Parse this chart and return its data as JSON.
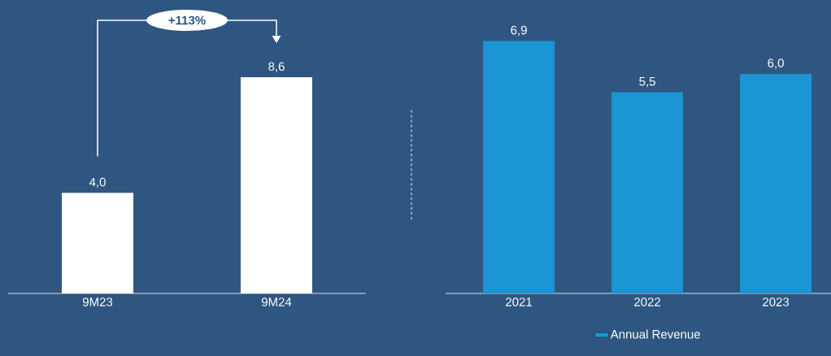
{
  "chart_data": [
    {
      "type": "bar",
      "categories": [
        "9M23",
        "9M24"
      ],
      "series": [
        {
          "color": "#ffffff",
          "values": [
            4.0,
            8.6
          ],
          "value_labels": [
            "4,0",
            "8,6"
          ]
        }
      ],
      "annotations": [
        "+113%"
      ]
    },
    {
      "type": "bar",
      "categories": [
        "2021",
        "2022",
        "2023"
      ],
      "series": [
        {
          "name": "Annual Revenue",
          "color": "#1a96d4",
          "values": [
            6.9,
            5.5,
            6.0
          ],
          "value_labels": [
            "6,9",
            "5,5",
            "6,0"
          ]
        }
      ],
      "legend": "bottom"
    }
  ]
}
